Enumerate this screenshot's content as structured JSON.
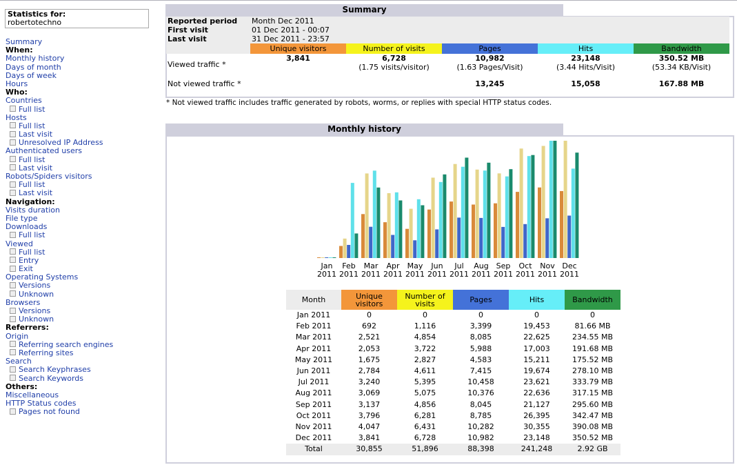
{
  "sidebar": {
    "stats_for_label": "Statistics for:",
    "site_name": "robertotechno",
    "items": [
      {
        "type": "link",
        "label": "Summary"
      },
      {
        "type": "section",
        "label": "When:"
      },
      {
        "type": "link",
        "label": "Monthly history"
      },
      {
        "type": "link",
        "label": "Days of month"
      },
      {
        "type": "link",
        "label": "Days of week"
      },
      {
        "type": "link",
        "label": "Hours"
      },
      {
        "type": "section",
        "label": "Who:"
      },
      {
        "type": "link",
        "label": "Countries"
      },
      {
        "type": "sub",
        "label": "Full list"
      },
      {
        "type": "link",
        "label": "Hosts"
      },
      {
        "type": "sub",
        "label": "Full list"
      },
      {
        "type": "sub",
        "label": "Last visit"
      },
      {
        "type": "sub",
        "label": "Unresolved IP Address"
      },
      {
        "type": "link",
        "label": "Authenticated users"
      },
      {
        "type": "sub",
        "label": "Full list"
      },
      {
        "type": "sub",
        "label": "Last visit"
      },
      {
        "type": "link",
        "label": "Robots/Spiders visitors"
      },
      {
        "type": "sub",
        "label": "Full list"
      },
      {
        "type": "sub",
        "label": "Last visit"
      },
      {
        "type": "section",
        "label": "Navigation:"
      },
      {
        "type": "link",
        "label": "Visits duration"
      },
      {
        "type": "link",
        "label": "File type"
      },
      {
        "type": "link",
        "label": "Downloads"
      },
      {
        "type": "sub",
        "label": "Full list"
      },
      {
        "type": "link",
        "label": "Viewed"
      },
      {
        "type": "sub",
        "label": "Full list"
      },
      {
        "type": "sub",
        "label": "Entry"
      },
      {
        "type": "sub",
        "label": "Exit"
      },
      {
        "type": "link",
        "label": "Operating Systems"
      },
      {
        "type": "sub",
        "label": "Versions"
      },
      {
        "type": "sub",
        "label": "Unknown"
      },
      {
        "type": "link",
        "label": "Browsers"
      },
      {
        "type": "sub",
        "label": "Versions"
      },
      {
        "type": "sub",
        "label": "Unknown"
      },
      {
        "type": "section",
        "label": "Referrers:"
      },
      {
        "type": "link",
        "label": "Origin"
      },
      {
        "type": "sub",
        "label": "Referring search engines"
      },
      {
        "type": "sub",
        "label": "Referring sites"
      },
      {
        "type": "link",
        "label": "Search"
      },
      {
        "type": "sub",
        "label": "Search Keyphrases"
      },
      {
        "type": "sub",
        "label": "Search Keywords"
      },
      {
        "type": "section",
        "label": "Others:"
      },
      {
        "type": "link",
        "label": "Miscellaneous"
      },
      {
        "type": "link",
        "label": "HTTP Status codes"
      },
      {
        "type": "sub",
        "label": "Pages not found"
      }
    ]
  },
  "summary": {
    "title": "Summary",
    "reported_period_label": "Reported period",
    "reported_period_value": "Month Dec 2011",
    "first_visit_label": "First visit",
    "first_visit_value": "01 Dec 2011 - 00:07",
    "last_visit_label": "Last visit",
    "last_visit_value": "31 Dec 2011 - 23:57",
    "columns": [
      "Unique visitors",
      "Number of visits",
      "Pages",
      "Hits",
      "Bandwidth"
    ],
    "viewed_label": "Viewed traffic *",
    "viewed": [
      {
        "main": "3,841",
        "sub": ""
      },
      {
        "main": "6,728",
        "sub": "(1.75 visits/visitor)"
      },
      {
        "main": "10,982",
        "sub": "(1.63 Pages/Visit)"
      },
      {
        "main": "23,148",
        "sub": "(3.44 Hits/Visit)"
      },
      {
        "main": "350.52 MB",
        "sub": "(53.34 KB/Visit)"
      }
    ],
    "not_viewed_label": "Not viewed traffic *",
    "not_viewed": [
      "",
      "",
      "13,245",
      "15,058",
      "167.88 MB"
    ],
    "footnote": "* Not viewed traffic includes traffic generated by robots, worms, or replies with special HTTP status codes."
  },
  "monthly": {
    "title": "Monthly history",
    "headers": [
      "Month",
      "Unique visitors",
      "Number of visits",
      "Pages",
      "Hits",
      "Bandwidth"
    ],
    "rows": [
      [
        "Jan 2011",
        "0",
        "0",
        "0",
        "0",
        "0"
      ],
      [
        "Feb 2011",
        "692",
        "1,116",
        "3,399",
        "19,453",
        "81.66 MB"
      ],
      [
        "Mar 2011",
        "2,521",
        "4,854",
        "8,085",
        "22,625",
        "234.55 MB"
      ],
      [
        "Apr 2011",
        "2,053",
        "3,722",
        "5,988",
        "17,003",
        "191.68 MB"
      ],
      [
        "May 2011",
        "1,675",
        "2,827",
        "4,583",
        "15,211",
        "175.52 MB"
      ],
      [
        "Jun 2011",
        "2,784",
        "4,611",
        "7,415",
        "19,674",
        "278.10 MB"
      ],
      [
        "Jul 2011",
        "3,240",
        "5,395",
        "10,458",
        "23,621",
        "333.79 MB"
      ],
      [
        "Aug 2011",
        "3,069",
        "5,075",
        "10,376",
        "22,636",
        "317.15 MB"
      ],
      [
        "Sep 2011",
        "3,137",
        "4,856",
        "8,045",
        "21,127",
        "295.60 MB"
      ],
      [
        "Oct 2011",
        "3,796",
        "6,281",
        "8,785",
        "26,395",
        "342.47 MB"
      ],
      [
        "Nov 2011",
        "4,047",
        "6,431",
        "10,282",
        "30,355",
        "390.08 MB"
      ],
      [
        "Dec 2011",
        "3,841",
        "6,728",
        "10,982",
        "23,148",
        "350.52 MB"
      ]
    ],
    "total": [
      "Total",
      "30,855",
      "51,896",
      "88,398",
      "241,248",
      "2.92 GB"
    ]
  },
  "colors": {
    "unique_visitors": "#f3963a",
    "visits": "#f5f31c",
    "pages": "#4472d8",
    "hits": "#66eef8",
    "bandwidth": "#2f9948",
    "panel": "#cfcfdc",
    "link": "#1f3ea8"
  },
  "chart_data": {
    "type": "bar",
    "categories": [
      [
        "Jan",
        "2011"
      ],
      [
        "Feb",
        "2011"
      ],
      [
        "Mar",
        "2011"
      ],
      [
        "Apr",
        "2011"
      ],
      [
        "May",
        "2011"
      ],
      [
        "Jun",
        "2011"
      ],
      [
        "Jul",
        "2011"
      ],
      [
        "Aug",
        "2011"
      ],
      [
        "Sep",
        "2011"
      ],
      [
        "Oct",
        "2011"
      ],
      [
        "Nov",
        "2011"
      ],
      [
        "Dec",
        "2011"
      ]
    ],
    "series": [
      {
        "name": "Unique visitors",
        "group": "visits",
        "color": "#d98a3a",
        "values": [
          0,
          692,
          2521,
          2053,
          1675,
          2784,
          3240,
          3069,
          3137,
          3796,
          4047,
          3841
        ]
      },
      {
        "name": "Number of visits",
        "group": "visits",
        "color": "#e6d58a",
        "values": [
          0,
          1116,
          4854,
          3722,
          2827,
          4611,
          5395,
          5075,
          4856,
          6281,
          6431,
          6728
        ]
      },
      {
        "name": "Pages",
        "group": "hits",
        "color": "#3f67c9",
        "values": [
          0,
          3399,
          8085,
          5988,
          4583,
          7415,
          10458,
          10376,
          8045,
          8785,
          10282,
          10982
        ]
      },
      {
        "name": "Hits",
        "group": "hits",
        "color": "#5fe0ea",
        "values": [
          0,
          19453,
          22625,
          17003,
          15211,
          19674,
          23621,
          22636,
          21127,
          26395,
          30355,
          23148
        ]
      },
      {
        "name": "Bandwidth",
        "group": "bandwidth",
        "color": "#1a8a6c",
        "values": [
          0,
          81.66,
          234.55,
          191.68,
          175.52,
          278.1,
          333.79,
          317.15,
          295.6,
          342.47,
          390.08,
          350.52
        ]
      }
    ],
    "group_max": {
      "visits": 6728,
      "hits": 30355,
      "bandwidth": 390.08
    }
  }
}
